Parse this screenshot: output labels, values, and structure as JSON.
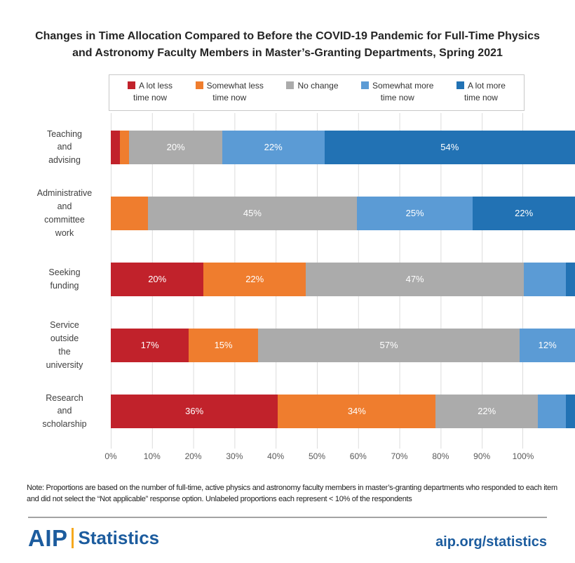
{
  "title": "Changes in Time Allocation Compared to Before the COVID-19 Pandemic for Full-Time Physics and Astronomy Faculty Members in Master’s-Granting Departments, Spring 2021",
  "legend": {
    "items": [
      {
        "line1": "A lot less",
        "line2": "time now"
      },
      {
        "line1": "Somewhat less",
        "line2": "time now"
      },
      {
        "line1": "No change",
        "line2": ""
      },
      {
        "line1": "Somewhat more",
        "line2": "time now"
      },
      {
        "line1": "A lot more",
        "line2": "time now"
      }
    ]
  },
  "chart_data": {
    "type": "bar",
    "orientation": "horizontal",
    "stacked": true,
    "title": "Changes in Time Allocation Compared to Before the COVID-19 Pandemic for Full-Time Physics and Astronomy Faculty Members in Master’s-Granting Departments, Spring 2021",
    "categories": [
      "Teaching and advising",
      "Administrative and committee work",
      "Seeking funding",
      "Service outside the university",
      "Research and scholarship"
    ],
    "categories_display": [
      "Teaching\nand\nadvising",
      "Administrative\nand\ncommittee\nwork",
      "Seeking\nfunding",
      "Service\noutside\nthe\nuniversity",
      "Research\nand\nscholarship"
    ],
    "series": [
      {
        "name": "A lot less time now",
        "color": "#c1222b",
        "values": [
          2,
          0,
          20,
          17,
          36
        ]
      },
      {
        "name": "Somewhat less time now",
        "color": "#ef7d2e",
        "values": [
          2,
          8,
          22,
          15,
          34
        ]
      },
      {
        "name": "No change",
        "color": "#ababab",
        "values": [
          20,
          45,
          47,
          57,
          22
        ]
      },
      {
        "name": "Somewhat more time now",
        "color": "#5b9bd5",
        "values": [
          22,
          25,
          9,
          12,
          6
        ]
      },
      {
        "name": "A lot more time now",
        "color": "#2272b4",
        "values": [
          54,
          22,
          2,
          0,
          2
        ]
      }
    ],
    "label_threshold_pct": 10,
    "x_ticks": [
      "0%",
      "10%",
      "20%",
      "30%",
      "40%",
      "50%",
      "60%",
      "70%",
      "80%",
      "90%",
      "100%"
    ],
    "xlim": [
      0,
      100
    ],
    "grid": "vertical",
    "legend_position": "top"
  },
  "note": "Note: Proportions are based on the number of full-time, active physics and astronomy faculty members in master’s-granting departments who responded to each item and did not select the “Not applicable” response option. Unlabeled proportions each represent < 10% of the respondents",
  "footer": {
    "logo_aip": "AIP",
    "logo_statistics": "Statistics",
    "link": "aip.org/statistics"
  },
  "colors": {
    "a_lot_less": "#c1222b",
    "somewhat_less": "#ef7d2e",
    "no_change": "#ababab",
    "somewhat_more": "#5b9bd5",
    "a_lot_more": "#2272b4",
    "gridline": "#dcdcdc",
    "brand_blue": "#1c5c9e",
    "brand_gold": "#f6a81c"
  }
}
